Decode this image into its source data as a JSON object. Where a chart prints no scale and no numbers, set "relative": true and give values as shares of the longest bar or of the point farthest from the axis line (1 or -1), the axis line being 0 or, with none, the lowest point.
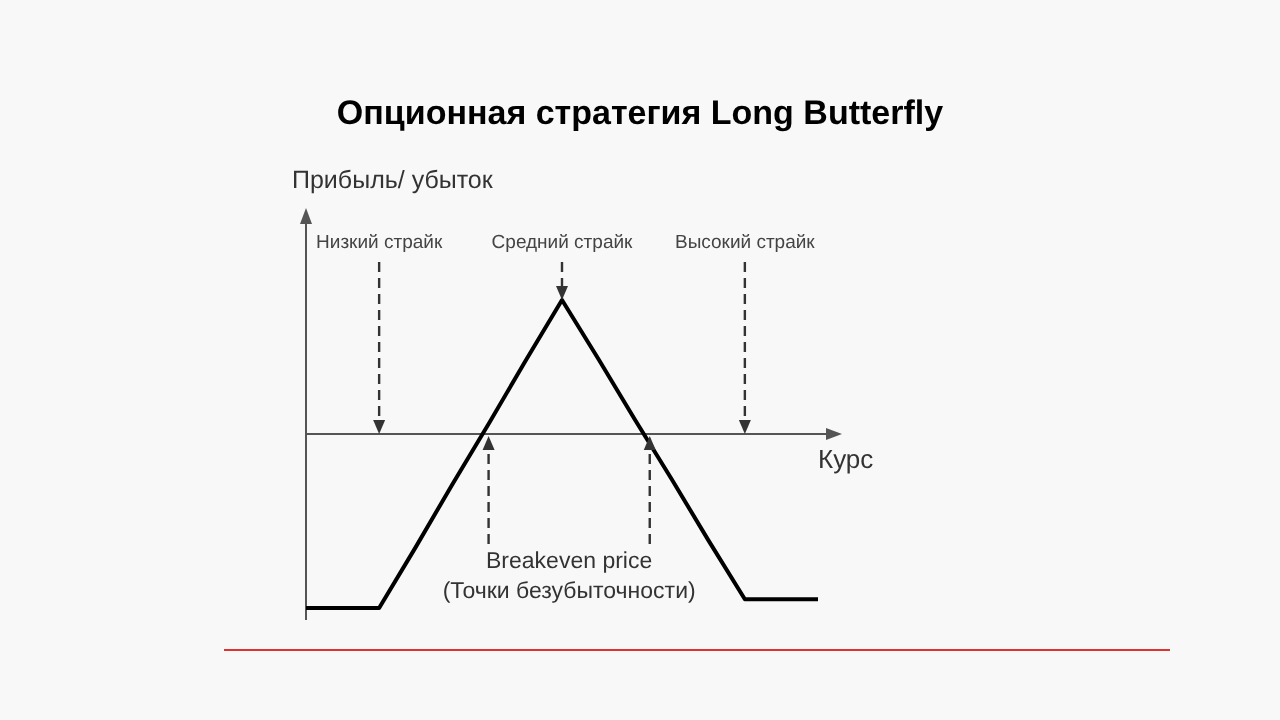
{
  "chart_data": {
    "type": "line",
    "title": "Опционная стратегия Long Butterfly",
    "xlabel": "Курс",
    "ylabel": "Прибыль/ убыток",
    "relative": true,
    "line_style": "solid",
    "categories": [
      null,
      null,
      null,
      null,
      null,
      null,
      null,
      null,
      null,
      null,
      null,
      null,
      null,
      null,
      null
    ],
    "series": [
      {
        "color": "#000000",
        "values": [
          -1,
          -1,
          -1,
          -0.65,
          -0.29,
          0.06,
          0.42,
          0.77,
          0.43,
          0.08,
          -0.26,
          -0.61,
          -0.95,
          -0.95,
          -0.95
        ]
      }
    ],
    "annotations": [
      "Низкий страйк",
      "Средний страйк",
      "Высокий страйк",
      "Breakeven price\n(Точки безубыточности)"
    ]
  }
}
